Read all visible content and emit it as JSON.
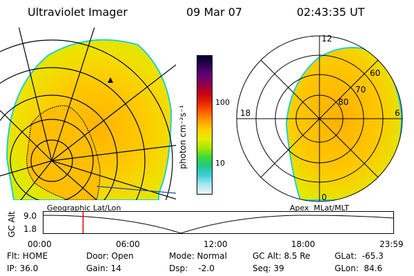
{
  "header": {
    "title": "Ultraviolet Imager",
    "date": "09 Mar 07",
    "time": "02:43:35 UT"
  },
  "colorbar": {
    "unit_label": "photon cm⁻²s⁻¹",
    "ticks": [
      "100",
      "10"
    ],
    "colors": [
      "#000033",
      "#300050",
      "#60007a",
      "#8a0050",
      "#c0001a",
      "#e82000",
      "#ff5a00",
      "#ff9a00",
      "#ffcf00",
      "#e6ec00",
      "#a8e800",
      "#3ed838",
      "#20c890",
      "#40d0d8",
      "#a8e8f0",
      "#e8f4f8"
    ]
  },
  "geo_map": {
    "label": "Geographic Lat/Lon"
  },
  "apex_map": {
    "label": "Apex  MLat/MLT",
    "mlt_labels": {
      "top": "12",
      "left": "18",
      "right": "6",
      "bottom": "0"
    },
    "lat_labels": [
      "60",
      "70",
      "80"
    ]
  },
  "timeline": {
    "ylabel": "GC Alt",
    "yticks": [
      "9.0",
      "1.8"
    ],
    "xticks": [
      "00:00",
      "06:00",
      "12:00",
      "18:00",
      "23:59"
    ],
    "marker_time_fraction": 0.115
  },
  "info": {
    "row1": {
      "flt": "Flt: HOME",
      "door": "Door: Open",
      "mode": "Mode: Normal",
      "gcalt": "GC Alt: 8.5 Re",
      "glat": "GLat:  -65.3"
    },
    "row2": {
      "ip": "IP: 36.0",
      "gain": "Gain: 14",
      "dsp": "Dsp:    -2.0",
      "seq": "Seq: 39",
      "glon": "GLon:  84.6"
    }
  }
}
